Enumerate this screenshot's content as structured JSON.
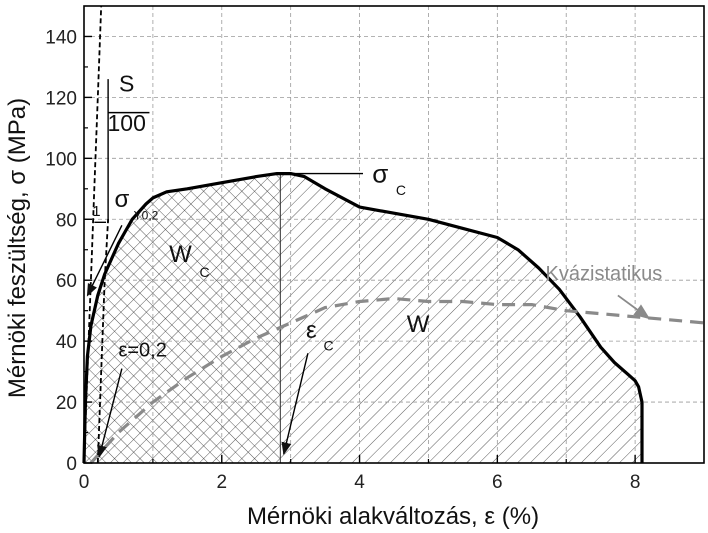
{
  "chart_data": {
    "type": "line",
    "xlabel": "Mérnöki alakváltozás, ε (%)",
    "ylabel": "Mérnöki feszültség, σ (MPa)",
    "xlim": [
      0,
      9
    ],
    "ylim": [
      0,
      150
    ],
    "x_ticks": [
      0,
      2,
      4,
      6,
      8
    ],
    "y_ticks": [
      0,
      20,
      40,
      60,
      80,
      100,
      120,
      140
    ],
    "grid": true,
    "series": [
      {
        "style": "solid-black",
        "x": [
          0.0,
          0.02,
          0.05,
          0.1,
          0.2,
          0.3,
          0.5,
          0.7,
          0.9,
          1.0,
          1.2,
          1.5,
          2.0,
          2.5,
          2.8,
          3.0,
          3.2,
          3.5,
          4.0,
          4.5,
          5.0,
          5.5,
          6.0,
          6.3,
          6.6,
          6.9,
          7.2,
          7.5,
          7.7,
          7.9,
          8.0,
          8.05,
          8.1,
          8.1
        ],
        "y": [
          0,
          20,
          35,
          45,
          55,
          62,
          72,
          80,
          85,
          87,
          89,
          90,
          92,
          94,
          95,
          95,
          94,
          90,
          84,
          82,
          80,
          77,
          74,
          70,
          64,
          57,
          48,
          38,
          33,
          29,
          27,
          25,
          20,
          0
        ]
      },
      {
        "name": "Kvázistatikus",
        "style": "dashed-gray",
        "x": [
          0.1,
          0.5,
          1.0,
          1.5,
          2.0,
          2.5,
          3.0,
          3.5,
          4.0,
          4.5,
          5.0,
          5.5,
          6.0,
          6.5,
          7.0,
          7.5,
          8.0,
          8.5,
          9.0
        ],
        "y": [
          0,
          10,
          20,
          28,
          35,
          41,
          46,
          51,
          53,
          54,
          53,
          53,
          52,
          52,
          50,
          49,
          48,
          47,
          46
        ]
      },
      {
        "style": "dashed-black",
        "x": [
          0.0,
          0.05,
          0.1,
          0.15,
          0.2,
          0.25
        ],
        "y": [
          0,
          30,
          60,
          90,
          120,
          150
        ]
      },
      {
        "style": "dashed-black",
        "x": [
          0.2,
          0.25,
          0.3,
          0.35
        ],
        "y": [
          0,
          30,
          60,
          80
        ]
      }
    ],
    "annotations": [
      {
        "text": "S",
        "x": 0.62,
        "y": 122
      },
      {
        "text": "100",
        "x": 0.62,
        "y": 109
      },
      {
        "text": "σ",
        "x": 0.55,
        "y": 84
      },
      {
        "text": "Y0,2",
        "x": 0.9,
        "y": 80
      },
      {
        "text": "σ",
        "x": 4.3,
        "y": 92
      },
      {
        "text": "C",
        "x": 4.6,
        "y": 88
      },
      {
        "text": "W",
        "x": 1.4,
        "y": 66
      },
      {
        "text": "C",
        "x": 1.75,
        "y": 61
      },
      {
        "text": "W",
        "x": 4.85,
        "y": 43
      },
      {
        "text": "ε",
        "x": 3.3,
        "y": 41
      },
      {
        "text": "C",
        "x": 3.55,
        "y": 37
      },
      {
        "text": "ε=0,2",
        "x": 0.5,
        "y": 35
      },
      {
        "text": "Kvázistatikus",
        "x": 6.7,
        "y": 60
      },
      {
        "text": "1",
        "x": 0.18,
        "y": 81
      }
    ],
    "hatched_regions": [
      {
        "label": "W_C",
        "pattern": "cross-hatch",
        "x_range": [
          0,
          2.85
        ]
      },
      {
        "label": "W",
        "pattern": "diagonal",
        "x_range": [
          2.85,
          8.1
        ]
      }
    ],
    "markers": {
      "sigma_c": {
        "x": 2.85,
        "y": 95
      },
      "epsilon_c": 2.85,
      "yield_point": {
        "x": 0.32,
        "y": 80
      }
    }
  }
}
